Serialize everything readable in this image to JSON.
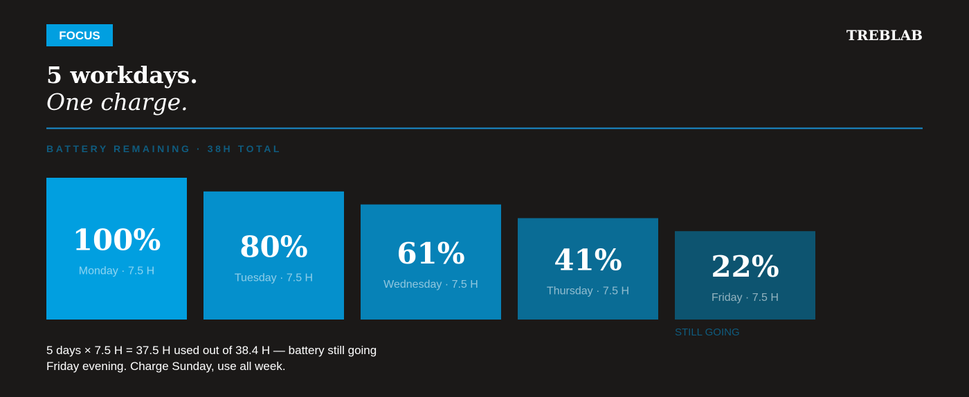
{
  "badge": "FOCUS",
  "brand": "TREBLAB",
  "chart_data": {
    "type": "bar",
    "title": "5 workdays.",
    "subtitle": "One charge.",
    "axis_label": "BATTERY REMAINING · 38H TOTAL",
    "categories": [
      "Monday · 7.5 H",
      "Tuesday · 7.5 H",
      "Wednesday · 7.5 H",
      "Thursday · 7.5 H",
      "Friday · 7.5 H"
    ],
    "values": [
      100,
      80,
      61,
      41,
      22
    ],
    "value_labels": [
      "100%",
      "80%",
      "61%",
      "41%",
      "22%"
    ],
    "colors": [
      "#019fe0",
      "#0590cc",
      "#0782b7",
      "#0a6c95",
      "#0d5470"
    ],
    "annotation": "STILL GOING"
  },
  "footnote": [
    "5 days × 7.5 H = 37.5 H used out of 38.4 H — battery still going",
    "Friday evening. Charge Sunday, use all week."
  ]
}
